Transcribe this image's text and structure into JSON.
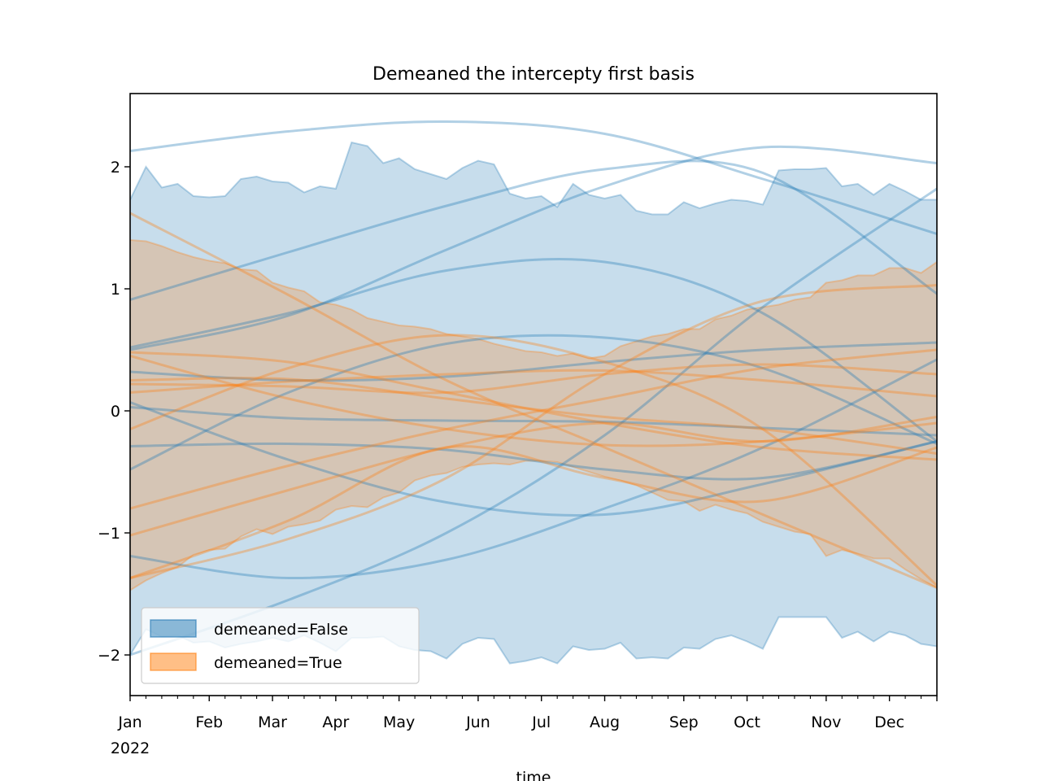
{
  "chart_data": {
    "type": "area",
    "title": "Demeaned the intercepty first basis",
    "xlabel": "time",
    "ylabel": "",
    "ylim": [
      -2.333,
      2.6
    ],
    "yticks": [
      2,
      1,
      0,
      -1,
      -2
    ],
    "ytick_labels": [
      "2",
      "1",
      "0",
      "−1",
      "−2"
    ],
    "x_unit": "week of 2022",
    "x_weeks": 52,
    "xticks": [
      {
        "week": 0,
        "label": "Jan"
      },
      {
        "week": 5,
        "label": "Feb"
      },
      {
        "week": 9,
        "label": "Mar"
      },
      {
        "week": 13,
        "label": "Apr"
      },
      {
        "week": 17,
        "label": "May"
      },
      {
        "week": 22,
        "label": "Jun"
      },
      {
        "week": 26,
        "label": "Jul"
      },
      {
        "week": 30,
        "label": "Aug"
      },
      {
        "week": 35,
        "label": "Sep"
      },
      {
        "week": 39,
        "label": "Oct"
      },
      {
        "week": 44,
        "label": "Nov"
      },
      {
        "week": 48,
        "label": "Dec"
      }
    ],
    "xtick_year": "2022",
    "legend": {
      "position": "lower-left",
      "entries": [
        "demeaned=False",
        "demeaned=True"
      ]
    },
    "colors": {
      "blue": "#1f77b4",
      "orange": "#ff7f0e"
    },
    "series": [
      {
        "name": "demeaned=False",
        "color": "#1f77b4",
        "band_upper": [
          1.73,
          2.0,
          1.83,
          1.86,
          1.76,
          1.75,
          1.76,
          1.9,
          1.92,
          1.88,
          1.87,
          1.79,
          1.84,
          1.82,
          2.2,
          2.17,
          2.03,
          2.07,
          1.98,
          1.94,
          1.9,
          1.99,
          2.05,
          2.02,
          1.78,
          1.74,
          1.76,
          1.67,
          1.86,
          1.77,
          1.74,
          1.77,
          1.64,
          1.61,
          1.61,
          1.71,
          1.66,
          1.7,
          1.73,
          1.72,
          1.69,
          1.97,
          1.98,
          1.98,
          1.99,
          1.84,
          1.86,
          1.77,
          1.86,
          1.8,
          1.73,
          1.73
        ],
        "band_lower": [
          -2.0,
          -1.79,
          -1.85,
          -1.84,
          -1.9,
          -1.89,
          -1.94,
          -1.91,
          -1.89,
          -1.86,
          -1.89,
          -1.84,
          -1.9,
          -1.97,
          -1.86,
          -1.86,
          -1.85,
          -1.93,
          -1.96,
          -1.97,
          -2.03,
          -1.91,
          -1.86,
          -1.87,
          -2.07,
          -2.05,
          -2.02,
          -2.07,
          -1.93,
          -1.96,
          -1.95,
          -1.9,
          -2.03,
          -2.02,
          -2.03,
          -1.94,
          -1.95,
          -1.87,
          -1.84,
          -1.89,
          -1.95,
          -1.69,
          -1.69,
          -1.69,
          -1.69,
          -1.86,
          -1.81,
          -1.89,
          -1.81,
          -1.84,
          -1.91,
          -1.93
        ],
        "lines": [
          [
            2.13,
            2.29,
            2.37,
            2.27,
            1.9,
            1.45
          ],
          [
            0.5,
            0.78,
            1.32,
            1.84,
            2.16,
            2.03
          ],
          [
            0.91,
            1.3,
            1.68,
            1.98,
            1.95,
            0.96
          ],
          [
            0.52,
            0.8,
            1.15,
            1.22,
            0.8,
            -0.25
          ],
          [
            -0.48,
            0.15,
            0.55,
            0.6,
            0.35,
            -0.27
          ],
          [
            0.32,
            0.25,
            0.28,
            0.4,
            0.5,
            0.56
          ],
          [
            0.07,
            -0.4,
            -0.75,
            -0.85,
            -0.6,
            -0.25
          ],
          [
            0.03,
            -0.06,
            -0.08,
            -0.09,
            -0.14,
            -0.2
          ],
          [
            -0.29,
            -0.27,
            -0.32,
            -0.48,
            -0.55,
            -0.25
          ],
          [
            -1.19,
            -1.37,
            -1.22,
            -0.8,
            -0.3,
            0.42
          ],
          [
            -2.0,
            -1.55,
            -1.0,
            -0.2,
            0.85,
            1.82
          ]
        ]
      },
      {
        "name": "demeaned=True",
        "color": "#ff7f0e",
        "band_upper": [
          1.4,
          1.39,
          1.35,
          1.3,
          1.26,
          1.23,
          1.21,
          1.16,
          1.15,
          1.05,
          1.01,
          0.98,
          0.89,
          0.87,
          0.83,
          0.76,
          0.73,
          0.7,
          0.69,
          0.67,
          0.63,
          0.61,
          0.59,
          0.55,
          0.52,
          0.49,
          0.48,
          0.45,
          0.47,
          0.43,
          0.45,
          0.53,
          0.57,
          0.61,
          0.63,
          0.67,
          0.67,
          0.75,
          0.78,
          0.83,
          0.85,
          0.87,
          0.91,
          0.93,
          1.05,
          1.07,
          1.11,
          1.11,
          1.17,
          1.17,
          1.13,
          1.22
        ],
        "band_lower": [
          -1.47,
          -1.39,
          -1.33,
          -1.28,
          -1.18,
          -1.14,
          -1.13,
          -1.03,
          -0.97,
          -1.01,
          -0.95,
          -0.93,
          -0.9,
          -0.81,
          -0.78,
          -0.79,
          -0.71,
          -0.67,
          -0.57,
          -0.53,
          -0.51,
          -0.46,
          -0.44,
          -0.43,
          -0.44,
          -0.41,
          -0.41,
          -0.42,
          -0.46,
          -0.5,
          -0.54,
          -0.57,
          -0.61,
          -0.67,
          -0.73,
          -0.74,
          -0.82,
          -0.77,
          -0.81,
          -0.84,
          -0.91,
          -0.95,
          -0.99,
          -1.01,
          -1.19,
          -1.14,
          -1.17,
          -1.21,
          -1.21,
          -1.3,
          -1.38,
          -1.45
        ],
        "lines": [
          [
            1.62,
            0.95,
            0.25,
            -0.3,
            -0.85,
            -1.45
          ],
          [
            0.48,
            0.4,
            0.15,
            -0.1,
            -0.3,
            -0.4
          ],
          [
            0.45,
            0.1,
            -0.15,
            -0.28,
            -0.25,
            -0.1
          ],
          [
            0.25,
            0.26,
            0.1,
            -0.05,
            -0.15,
            -0.35
          ],
          [
            0.15,
            0.24,
            0.3,
            0.33,
            0.25,
            0.12
          ],
          [
            -0.15,
            0.35,
            0.62,
            0.4,
            -0.15,
            -1.43
          ],
          [
            -1.37,
            -1.05,
            -0.55,
            0.3,
            0.9,
            1.03
          ],
          [
            -0.8,
            -0.45,
            -0.15,
            0.1,
            0.35,
            0.5
          ],
          [
            -1.02,
            -0.65,
            -0.3,
            -0.1,
            -0.25,
            -0.05
          ],
          [
            0.22,
            0.2,
            0.15,
            0.3,
            0.38,
            0.3
          ],
          [
            -1.37,
            -0.9,
            -0.3,
            -0.55,
            -0.74,
            -0.3
          ]
        ]
      }
    ],
    "line_sample_weeks": [
      0,
      10,
      20,
      30,
      40,
      51
    ]
  }
}
